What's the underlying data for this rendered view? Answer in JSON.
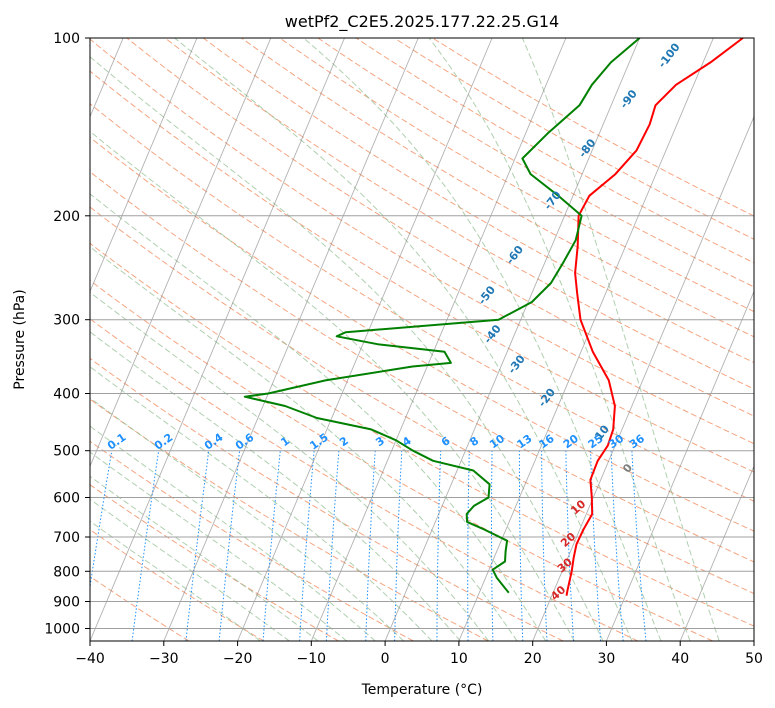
{
  "chart_data": {
    "type": "line",
    "title": "wetPf2_C2E5.2025.177.22.25.G14",
    "xlabel": "Temperature (°C)",
    "ylabel": "Pressure (hPa)",
    "xlim": [
      -40,
      50
    ],
    "ylim": [
      1050,
      100
    ],
    "y_scale": "log",
    "x_ticks": [
      "−40",
      "−30",
      "−20",
      "−10",
      "0",
      "10",
      "20",
      "30",
      "40",
      "50"
    ],
    "y_ticks": [
      "100",
      "200",
      "300",
      "400",
      "500",
      "600",
      "700",
      "800",
      "900",
      "1000"
    ],
    "grid": true,
    "colors": {
      "temperature": "#ff0000",
      "dewpoint": "#008000",
      "isotherm": "#808080",
      "dry_adiabat": "#f4a582",
      "moist_adiabat": "#8fbc8f",
      "mixing_ratio": "#1e90ff",
      "dry_label": "#d62728",
      "moist_label": "#1f77b4",
      "zero_label": "#7f7f7f"
    },
    "series": [
      {
        "key": "temperature",
        "pressure": [
          880,
          860,
          800,
          760,
          720,
          680,
          640,
          600,
          560,
          520,
          490,
          460,
          420,
          380,
          340,
          300,
          270,
          250,
          225,
          200,
          185,
          170,
          155,
          140,
          130,
          120,
          110,
          100
        ],
        "values": [
          22.0,
          21.8,
          21.3,
          20.8,
          20.4,
          20.5,
          20.8,
          19.8,
          18.6,
          18.5,
          19.0,
          18.8,
          17.7,
          15.4,
          11.6,
          8.1,
          6.1,
          4.7,
          3.5,
          1.9,
          2.2,
          4.5,
          6.0,
          6.3,
          6.0,
          7.6,
          11.0,
          14.0
        ]
      },
      {
        "key": "dewpoint",
        "pressure": [
          870,
          850,
          820,
          795,
          770,
          740,
          710,
          680,
          660,
          640,
          620,
          600,
          570,
          540,
          520,
          500,
          480,
          460,
          440,
          420,
          405,
          400,
          380,
          360,
          355,
          340,
          330,
          320,
          315,
          300,
          280,
          260,
          240,
          220,
          200,
          185,
          170,
          160,
          145,
          130,
          120,
          110,
          100
        ],
        "values": [
          14.0,
          13.0,
          11.5,
          10.5,
          11.7,
          11.2,
          10.8,
          7.1,
          4.3,
          3.8,
          4.3,
          5.8,
          5.2,
          2.2,
          -3.8,
          -7.1,
          -10.0,
          -14.0,
          -22.0,
          -27.0,
          -33.0,
          -30.0,
          -23.0,
          -12.0,
          -7.0,
          -8.5,
          -18.0,
          -24.0,
          -23.0,
          -3.0,
          0.5,
          2.0,
          2.5,
          2.9,
          2.3,
          -2.0,
          -7.0,
          -9.0,
          -7.0,
          -4.3,
          -3.8,
          -2.5,
          0.0
        ]
      }
    ],
    "dry_adiabat_labels": [
      "10",
      "20",
      "30",
      "40"
    ],
    "moist_adiabat_labels": [
      "0",
      "10",
      "-20",
      "-30",
      "-40",
      "-50",
      "-60",
      "-70",
      "-80",
      "-90",
      "-100"
    ],
    "mixing_ratio_labels": [
      "0.1",
      "0.2",
      "0.4",
      "0.6",
      "1",
      "1.5",
      "2",
      "3",
      "4",
      "6",
      "8",
      "10",
      "13",
      "16",
      "20",
      "25",
      "30",
      "36"
    ]
  }
}
